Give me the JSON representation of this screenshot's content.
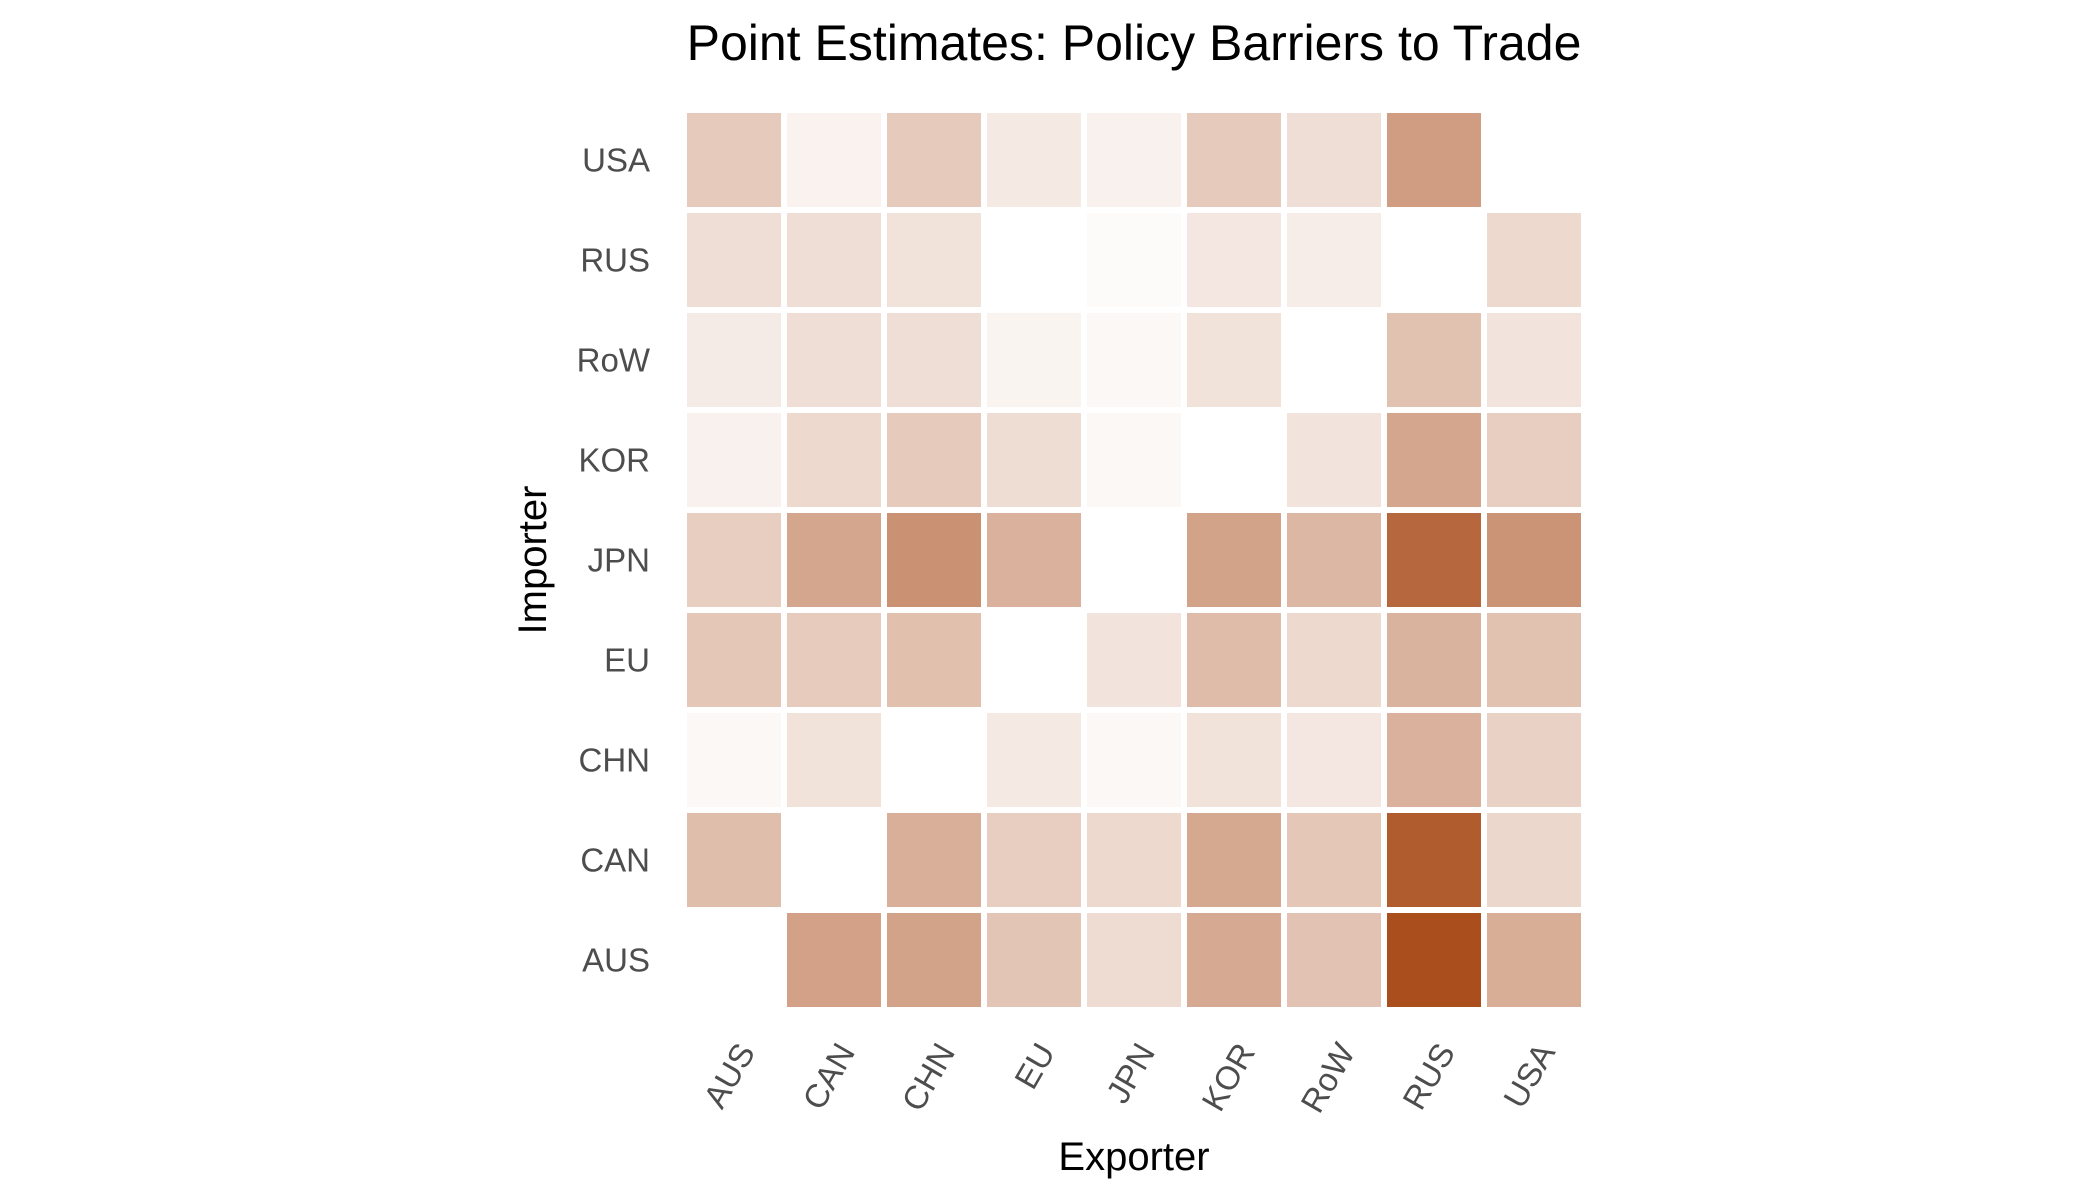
{
  "chart_data": {
    "type": "heatmap",
    "title": "Point Estimates: Policy Barriers to Trade",
    "xlabel": "Exporter",
    "ylabel": "Importer",
    "x_categories": [
      "AUS",
      "CAN",
      "CHN",
      "EU",
      "JPN",
      "KOR",
      "RoW",
      "RUS",
      "USA"
    ],
    "y_categories": [
      "AUS",
      "CAN",
      "CHN",
      "EU",
      "JPN",
      "KOR",
      "RoW",
      "RUS",
      "USA"
    ],
    "value_range": [
      0,
      1
    ],
    "color_scale": {
      "low": "#ffffff",
      "high": "#a84a18"
    },
    "grid": false,
    "legend": "none",
    "values": [
      [
        null,
        0.52,
        0.51,
        0.32,
        0.2,
        0.47,
        0.33,
        0.98,
        0.45
      ],
      [
        0.36,
        null,
        0.44,
        0.27,
        0.21,
        0.48,
        0.31,
        0.9,
        0.22
      ],
      [
        0.04,
        0.16,
        null,
        0.12,
        0.04,
        0.16,
        0.13,
        0.43,
        0.25
      ],
      [
        0.31,
        0.28,
        0.35,
        null,
        0.15,
        0.37,
        0.21,
        0.42,
        0.34
      ],
      [
        0.27,
        0.49,
        0.61,
        0.43,
        null,
        0.51,
        0.4,
        0.84,
        0.59
      ],
      [
        0.08,
        0.21,
        0.29,
        0.19,
        0.04,
        null,
        0.15,
        0.49,
        0.27
      ],
      [
        0.11,
        0.18,
        0.18,
        0.06,
        0.04,
        0.16,
        null,
        0.34,
        0.15
      ],
      [
        0.18,
        0.18,
        0.16,
        null,
        0.02,
        0.13,
        0.1,
        null,
        0.21
      ],
      [
        0.29,
        0.07,
        0.29,
        0.12,
        0.08,
        0.29,
        0.18,
        0.54,
        null
      ]
    ]
  }
}
